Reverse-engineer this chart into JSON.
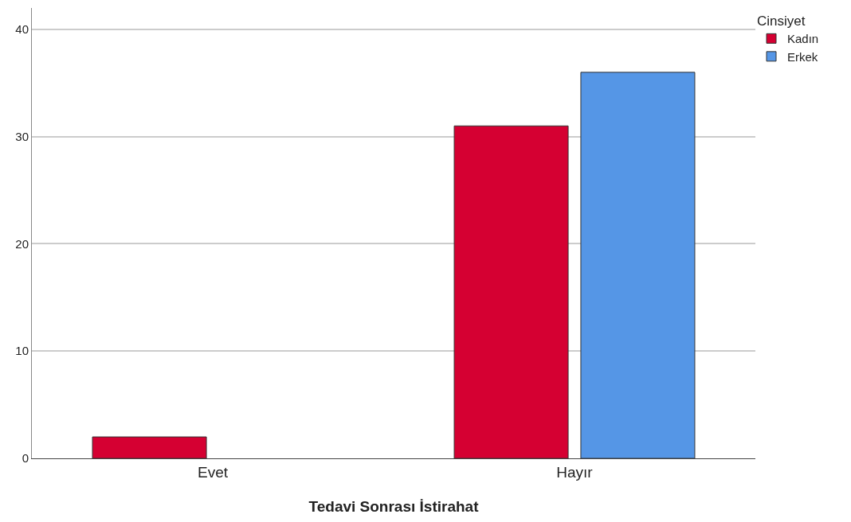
{
  "chart_data": {
    "type": "bar",
    "xlabel": "Tedavi Sonrası İstirahat",
    "legend_title": "Cinsiyet",
    "categories": [
      "Evet",
      "Hayır"
    ],
    "series": [
      {
        "name": "Kadın",
        "color": "#d50032",
        "values": [
          2,
          31
        ]
      },
      {
        "name": "Erkek",
        "color": "#5596e6",
        "values": [
          null,
          36
        ]
      }
    ],
    "ylim": [
      0,
      42
    ],
    "yticks": [
      0,
      10,
      20,
      30,
      40
    ],
    "grid": "y",
    "legend": "top right"
  }
}
